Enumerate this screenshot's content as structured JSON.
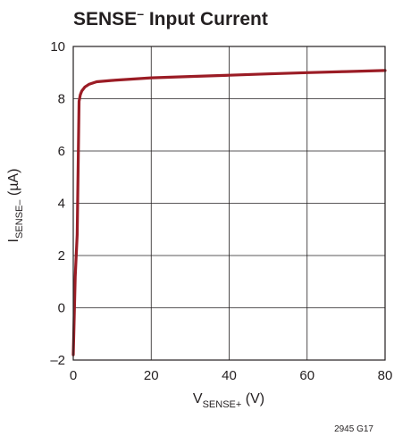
{
  "chart_data": {
    "type": "line",
    "title": {
      "main": "SENSE",
      "superscript": "–",
      "rest": " Input Current"
    },
    "xlabel": {
      "main": "V",
      "subscript": "SENSE+",
      "rest": " (V)"
    },
    "ylabel": {
      "main": "I",
      "subscript": "SENSE–",
      "rest": " (µA)"
    },
    "xlim": [
      0,
      80
    ],
    "ylim": [
      -2,
      10
    ],
    "x_ticks": [
      0,
      20,
      40,
      60,
      80
    ],
    "y_ticks": [
      -2,
      0,
      2,
      4,
      6,
      8,
      10
    ],
    "x_tick_labels": [
      "0",
      "20",
      "40",
      "60",
      "80"
    ],
    "y_tick_labels": [
      "–2",
      "0",
      "2",
      "4",
      "6",
      "8",
      "10"
    ],
    "grid": true,
    "series": [
      {
        "color": "#9b1c25",
        "x": [
          0,
          0.5,
          1,
          1.5,
          1.8,
          2.2,
          3,
          4,
          6,
          10,
          20,
          30,
          40,
          50,
          60,
          70,
          80
        ],
        "y": [
          -1.8,
          1.2,
          2.8,
          7.9,
          8.15,
          8.3,
          8.45,
          8.55,
          8.65,
          8.7,
          8.8,
          8.85,
          8.9,
          8.95,
          9.0,
          9.04,
          9.08
        ]
      }
    ]
  },
  "figure_id": "2945 G17"
}
